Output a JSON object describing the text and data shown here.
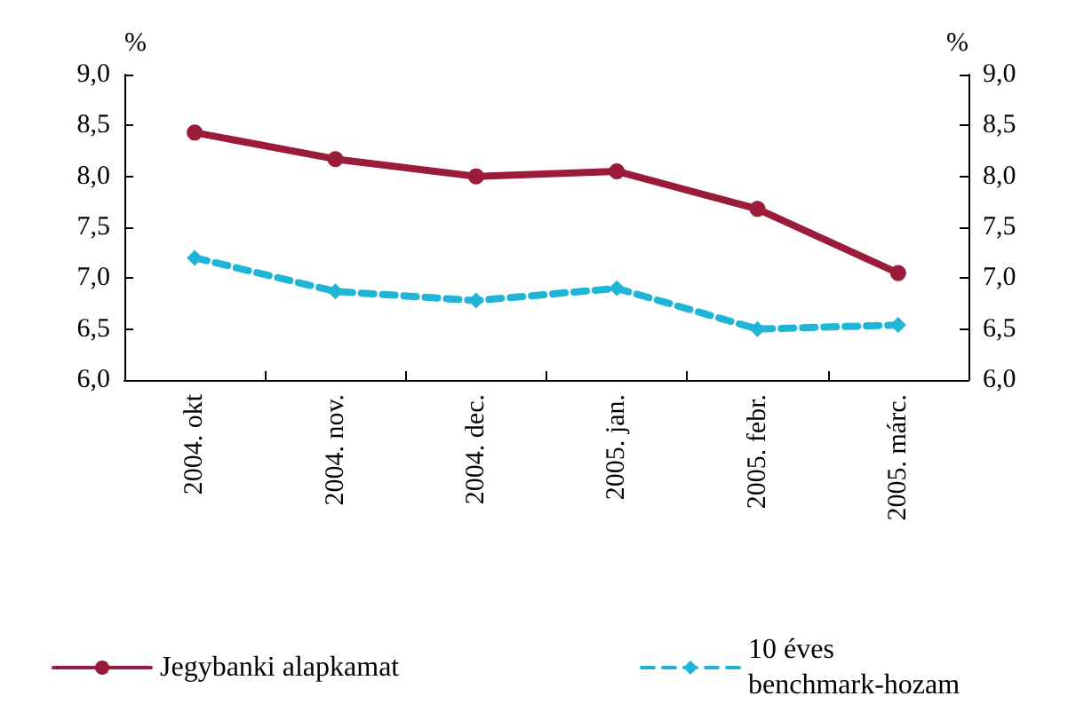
{
  "chart_data": {
    "type": "line",
    "ylabel": "%",
    "y2label": "%",
    "categories": [
      "2004. okt",
      "2004. nov.",
      "2004. dec.",
      "2005. jan.",
      "2005. febr.",
      "2005. márc."
    ],
    "series": [
      {
        "name": "Jegybanki alapkamat",
        "color": "#9b1b3b",
        "values": [
          8.43,
          8.17,
          8.0,
          8.05,
          7.68,
          7.05
        ],
        "marker": "circle",
        "line_style": "solid"
      },
      {
        "name": "10 éves benchmark-hozam",
        "color": "#1fb5d6",
        "values": [
          7.2,
          6.87,
          6.78,
          6.9,
          6.5,
          6.54
        ],
        "marker": "diamond",
        "line_style": "dashed"
      }
    ],
    "ylim": [
      6,
      9
    ],
    "yticks": [
      {
        "value": 6,
        "label": "6,0"
      },
      {
        "value": 6.5,
        "label": "6,5"
      },
      {
        "value": 7,
        "label": "7,0"
      },
      {
        "value": 7.5,
        "label": "7,5"
      },
      {
        "value": 8,
        "label": "8,0"
      },
      {
        "value": 8.5,
        "label": "8,5"
      },
      {
        "value": 9,
        "label": "9,0"
      }
    ],
    "y2lim": [
      6,
      9
    ],
    "y2ticks": [
      {
        "value": 6,
        "label": "6,0"
      },
      {
        "value": 6.5,
        "label": "6,5"
      },
      {
        "value": 7,
        "label": "7,0"
      },
      {
        "value": 7.5,
        "label": "7,5"
      },
      {
        "value": 8,
        "label": "8,0"
      },
      {
        "value": 8.5,
        "label": "8,5"
      },
      {
        "value": 9,
        "label": "9,0"
      }
    ],
    "grid": false,
    "legend": "bottom"
  }
}
